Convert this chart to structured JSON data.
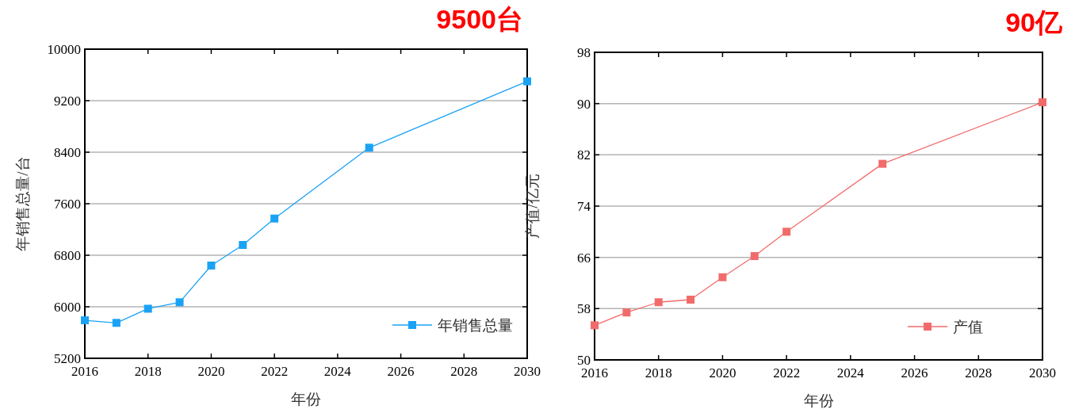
{
  "chart_data": [
    {
      "type": "line",
      "x": [
        2016,
        2017,
        2018,
        2019,
        2020,
        2021,
        2022,
        2025,
        2030
      ],
      "series": [
        {
          "name": "年销售总量",
          "color": "#1aa3f5",
          "values": [
            5790,
            5750,
            5970,
            6070,
            6640,
            6960,
            7370,
            8470,
            9500
          ]
        }
      ],
      "xlabel": "年份",
      "ylabel": "年销售总量/台",
      "xlim": [
        2016,
        2030
      ],
      "xticks": [
        2016,
        2018,
        2020,
        2022,
        2024,
        2026,
        2028,
        2030
      ],
      "ylim": [
        5200,
        10000
      ],
      "yticks": [
        5200,
        6000,
        6800,
        7600,
        8400,
        9200,
        10000
      ],
      "grid": "y",
      "legend": "bottom right",
      "marker": "square",
      "line_style": "solid",
      "annotations": [
        "9500台"
      ]
    },
    {
      "type": "line",
      "x": [
        2016,
        2017,
        2018,
        2019,
        2020,
        2021,
        2022,
        2025,
        2030
      ],
      "series": [
        {
          "name": "产值",
          "color": "#f26b6b",
          "values": [
            55.4,
            57.4,
            59.0,
            59.4,
            62.9,
            66.2,
            70.0,
            80.6,
            90.2
          ]
        }
      ],
      "xlabel": "年份",
      "ylabel": "产值/亿元",
      "xlim": [
        2016,
        2030
      ],
      "xticks": [
        2016,
        2018,
        2020,
        2022,
        2024,
        2026,
        2028,
        2030
      ],
      "ylim": [
        50,
        98
      ],
      "yticks": [
        50,
        58,
        66,
        74,
        82,
        90,
        98
      ],
      "grid": "y",
      "legend": "bottom right",
      "marker": "square",
      "line_style": "solid",
      "annotations": [
        "90亿"
      ]
    }
  ]
}
